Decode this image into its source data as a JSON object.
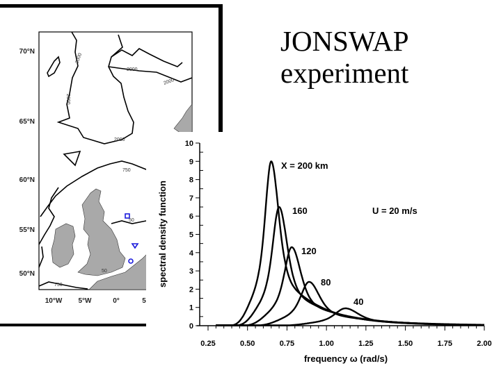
{
  "slide": {
    "title_line1": "JONSWAP",
    "title_line2": "experiment"
  },
  "map": {
    "lat_labels": [
      "70°N",
      "65°N",
      "60°N",
      "55°N",
      "50°N"
    ],
    "lon_labels": [
      "10°W",
      "5°W",
      "0°",
      "5"
    ],
    "contour_labels": [
      "2000",
      "2000",
      "2000",
      "2000",
      "750",
      "2000",
      "50",
      "50",
      "750"
    ],
    "marker_color": "#1a1adc",
    "markers": [
      "square",
      "triangle",
      "circle"
    ],
    "land_color": "#a9a9a9"
  },
  "chart_data": {
    "type": "line",
    "xlabel": "frequency  ω (rad/s)",
    "ylabel": "spectral density function",
    "xlim": [
      0.25,
      2.0
    ],
    "ylim": [
      0,
      10
    ],
    "x_ticks": [
      "0.25",
      "0.50",
      "0.75",
      "1.00",
      "1.25",
      "1.50",
      "1.75",
      "2.00"
    ],
    "y_ticks": [
      "0",
      "1",
      "2",
      "3",
      "4",
      "5",
      "6",
      "7",
      "8",
      "9",
      "10"
    ],
    "annotation": "U = 20 m/s",
    "grid": false,
    "series": [
      {
        "label": "X = 200 km",
        "peak_frequency": 0.65,
        "peak_value": 9.0
      },
      {
        "label": "160",
        "peak_frequency": 0.7,
        "peak_value": 6.5
      },
      {
        "label": "120",
        "peak_frequency": 0.78,
        "peak_value": 4.3
      },
      {
        "label": "80",
        "peak_frequency": 0.89,
        "peak_value": 2.4
      },
      {
        "label": "40",
        "peak_frequency": 1.12,
        "peak_value": 0.95
      }
    ]
  }
}
